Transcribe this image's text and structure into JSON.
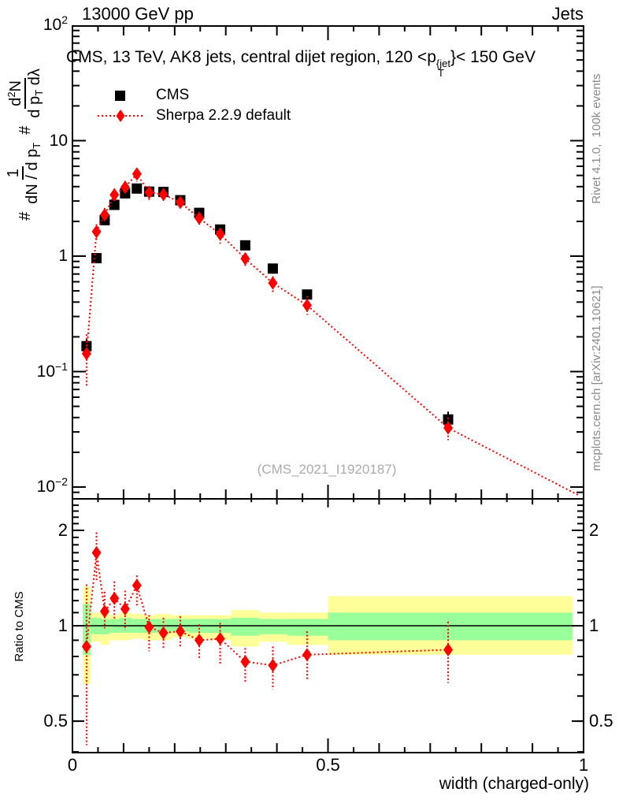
{
  "header": {
    "left": "13000 GeV pp",
    "right": "Jets"
  },
  "panel_title": {
    "pre": "CMS, 13 TeV, AK8 jets, central dijet region, 120 <p",
    "sup": "{jet",
    "sub": "T",
    "post": "}< 150 GeV"
  },
  "legend": {
    "items": [
      {
        "label": "CMS",
        "marker": "black-square"
      },
      {
        "label": "Sherpa 2.2.9 default",
        "marker": "red-diamond-dotted-line"
      }
    ]
  },
  "watermark": "(CMS_2021_I1920187)",
  "side_notes": {
    "top": "Rivet 4.1.0,  100k events",
    "bottom": "mcplots.cern.ch [arXiv:2401.10621]"
  },
  "ylabel": {
    "hash1": "#",
    "frac1": {
      "num": "1",
      "den_pre": "dN / d p",
      "den_sub": "T"
    },
    "hash2": "#",
    "frac2": {
      "num_pre": "d",
      "num_sup": "2",
      "num_post": "N",
      "den_pre": "d p",
      "den_sub": "T",
      "den_post": " dλ"
    }
  },
  "ratio_ylabel": "Ratio to CMS",
  "colors": {
    "mc_red": "#ff0000",
    "data_black": "#000000",
    "band_yellow": "#ffff99",
    "band_green": "#99ff99",
    "gray_notes": "#8a8a8a",
    "watermark_gray": "#aaaaaa"
  },
  "axes": {
    "xlabel": "width (charged-only)",
    "xticks": [
      {
        "value": 0,
        "label": "0"
      },
      {
        "value": 0.5,
        "label": "0.5"
      },
      {
        "value": 1,
        "label": "1"
      }
    ],
    "main_yticks": [
      {
        "value": 100,
        "base": "10",
        "exp": "2"
      },
      {
        "value": 10,
        "base": "10",
        "exp": ""
      },
      {
        "value": 1,
        "base": "1",
        "exp": ""
      },
      {
        "value": 0.1,
        "base": "10",
        "exp": "−1"
      },
      {
        "value": 0.01,
        "base": "10",
        "exp": "−2"
      }
    ],
    "ratio_yticks": [
      {
        "value": 2,
        "label": "2"
      },
      {
        "value": 1,
        "label": "1"
      },
      {
        "value": 0.5,
        "label": "0.5"
      }
    ]
  },
  "chart_data": [
    {
      "type": "scatter",
      "panel": "main",
      "title": "CMS, 13 TeV, AK8 jets, central dijet region, 120 < pT^{jet} < 150 GeV",
      "xlabel": "width (charged-only)",
      "ylabel": "1/(dN/dpT) d2N/(dpT dlambda)",
      "xscale": "linear",
      "yscale": "log",
      "xlim": [
        0,
        1
      ],
      "ylim": [
        0.008,
        100
      ],
      "legend_position": "top-left-inside",
      "grid": false,
      "x": [
        0.0275,
        0.047,
        0.063,
        0.082,
        0.103,
        0.126,
        0.15,
        0.178,
        0.211,
        0.248,
        0.289,
        0.338,
        0.392,
        0.459,
        0.735
      ],
      "series": [
        {
          "name": "CMS",
          "marker": "filled-square",
          "color": "#000000",
          "y": [
            0.166,
            0.96,
            2.05,
            2.78,
            3.5,
            3.85,
            3.62,
            3.6,
            3.05,
            2.37,
            1.7,
            1.24,
            0.78,
            0.465,
            0.0385
          ],
          "err_lo": [
            0.145,
            0.9,
            1.95,
            2.65,
            3.35,
            3.7,
            3.48,
            3.45,
            2.92,
            2.26,
            1.62,
            1.17,
            0.73,
            0.43,
            0.033
          ],
          "err_hi": [
            0.19,
            1.02,
            2.15,
            2.92,
            3.66,
            4.0,
            3.77,
            3.75,
            3.18,
            2.48,
            1.78,
            1.31,
            0.83,
            0.5,
            0.045
          ]
        },
        {
          "name": "Sherpa 2.2.9 default",
          "marker": "filled-diamond",
          "color": "#ff0000",
          "linestyle": "dotted",
          "y": [
            0.143,
            1.63,
            2.28,
            3.4,
            3.95,
            5.15,
            3.57,
            3.42,
            2.92,
            2.13,
            1.55,
            0.95,
            0.585,
            0.375,
            0.0325
          ],
          "err_lo": [
            0.073,
            1.33,
            2.0,
            2.93,
            3.39,
            4.42,
            3.0,
            3.02,
            2.59,
            1.87,
            1.28,
            0.82,
            0.49,
            0.31,
            0.0255
          ],
          "err_hi": [
            0.21,
            1.89,
            2.62,
            3.84,
            4.49,
            5.53,
            3.92,
            3.82,
            3.27,
            2.39,
            1.74,
            1.05,
            0.67,
            0.45,
            0.0398
          ],
          "line_end": {
            "x": 0.99,
            "y": 0.0085
          }
        }
      ]
    },
    {
      "type": "ratio",
      "panel": "bottom",
      "ylabel": "Ratio to CMS",
      "yscale": "log",
      "xlim": [
        0,
        1
      ],
      "ylim": [
        0.398,
        2.51
      ],
      "reference_line": 1,
      "x": [
        0.0275,
        0.047,
        0.063,
        0.082,
        0.103,
        0.126,
        0.15,
        0.178,
        0.211,
        0.248,
        0.289,
        0.338,
        0.392,
        0.459,
        0.735
      ],
      "y": [
        0.86,
        1.7,
        1.11,
        1.22,
        1.13,
        1.34,
        0.99,
        0.95,
        0.96,
        0.9,
        0.91,
        0.77,
        0.75,
        0.81,
        0.84
      ],
      "err_lo": [
        0.42,
        1.39,
        0.98,
        1.05,
        0.97,
        1.15,
        0.83,
        0.84,
        0.85,
        0.79,
        0.75,
        0.66,
        0.63,
        0.67,
        0.66
      ],
      "err_hi": [
        1.35,
        1.97,
        1.28,
        1.38,
        1.29,
        1.44,
        1.08,
        1.06,
        1.07,
        1.01,
        1.02,
        0.85,
        0.86,
        0.96,
        1.03
      ],
      "bands": {
        "edges": [
          0.02,
          0.035,
          0.055,
          0.072,
          0.092,
          0.115,
          0.138,
          0.163,
          0.193,
          0.228,
          0.268,
          0.31,
          0.365,
          0.42,
          0.5,
          0.978
        ],
        "yellow": [
          [
            0.655,
            1.33
          ],
          [
            0.89,
            1.1
          ],
          [
            0.87,
            1.1
          ],
          [
            0.9,
            1.08
          ],
          [
            0.9,
            1.1
          ],
          [
            0.91,
            1.09
          ],
          [
            0.9,
            1.08
          ],
          [
            0.9,
            1.09
          ],
          [
            0.92,
            1.08
          ],
          [
            0.91,
            1.08
          ],
          [
            0.9,
            1.08
          ],
          [
            0.86,
            1.12
          ],
          [
            0.89,
            1.1
          ],
          [
            0.87,
            1.1
          ],
          [
            0.81,
            1.24
          ]
        ],
        "green": [
          [
            0.81,
            1.17
          ],
          [
            0.94,
            1.06
          ],
          [
            0.94,
            1.05
          ],
          [
            0.95,
            1.05
          ],
          [
            0.95,
            1.06
          ],
          [
            0.95,
            1.05
          ],
          [
            0.95,
            1.05
          ],
          [
            0.95,
            1.05
          ],
          [
            0.96,
            1.05
          ],
          [
            0.95,
            1.05
          ],
          [
            0.95,
            1.05
          ],
          [
            0.93,
            1.06
          ],
          [
            0.94,
            1.05
          ],
          [
            0.93,
            1.05
          ],
          [
            0.9,
            1.1
          ]
        ]
      }
    }
  ]
}
